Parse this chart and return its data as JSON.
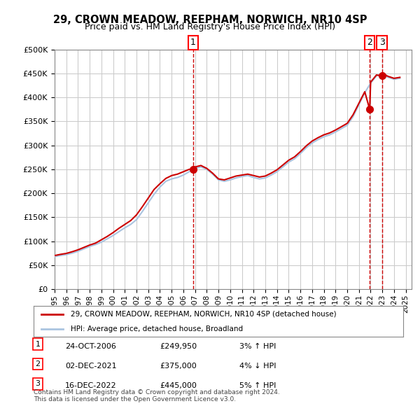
{
  "title1": "29, CROWN MEADOW, REEPHAM, NORWICH, NR10 4SP",
  "title2": "Price paid vs. HM Land Registry's House Price Index (HPI)",
  "ylabel": "",
  "background_color": "#ffffff",
  "plot_bg_color": "#ffffff",
  "grid_color": "#cccccc",
  "hpi_color": "#aac4e0",
  "price_color": "#cc0000",
  "purchase_marker_color": "#cc0000",
  "dashed_line_color": "#cc0000",
  "legend_label_price": "29, CROWN MEADOW, REEPHAM, NORWICH, NR10 4SP (detached house)",
  "legend_label_hpi": "HPI: Average price, detached house, Broadland",
  "purchases": [
    {
      "num": 1,
      "date": "24-OCT-2006",
      "price": 249950,
      "pct": "3%",
      "dir": "↑"
    },
    {
      "num": 2,
      "date": "02-DEC-2021",
      "price": 375000,
      "pct": "4%",
      "dir": "↓"
    },
    {
      "num": 3,
      "date": "16-DEC-2022",
      "price": 445000,
      "pct": "5%",
      "dir": "↑"
    }
  ],
  "purchase_years": [
    2006.83,
    2021.92,
    2022.96
  ],
  "purchase_values_price": [
    249950,
    375000,
    445000
  ],
  "footer": "Contains HM Land Registry data © Crown copyright and database right 2024.\nThis data is licensed under the Open Government Licence v3.0.",
  "ylim": [
    0,
    500000
  ],
  "xlim_start": 1995.0,
  "xlim_end": 2025.5
}
